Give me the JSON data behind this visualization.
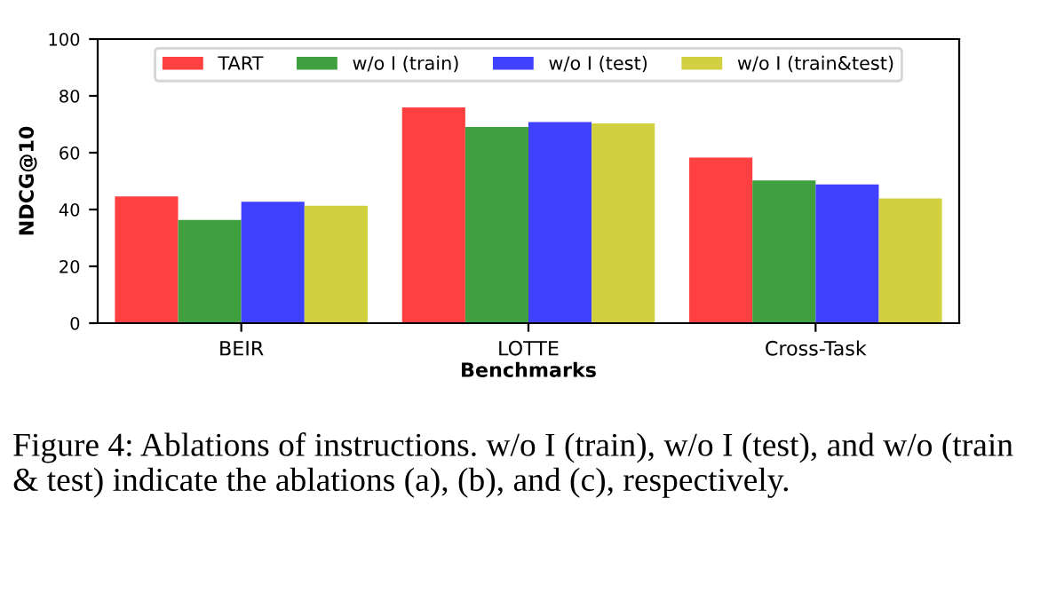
{
  "chart_data": {
    "type": "bar",
    "xlabel": "Benchmarks",
    "ylabel": "NDCG@10",
    "categories": [
      "BEIR",
      "LOTTE",
      "Cross-Task"
    ],
    "series": [
      {
        "name": "TART",
        "color": "#ff4040",
        "values": [
          44.6,
          75.9,
          58.3
        ]
      },
      {
        "name": "w/o I (train)",
        "color": "#40a040",
        "values": [
          36.3,
          69.1,
          50.2
        ]
      },
      {
        "name": "w/o I (test)",
        "color": "#4040ff",
        "values": [
          42.7,
          70.8,
          48.8
        ]
      },
      {
        "name": "w/o I (train&test)",
        "color": "#d0d040",
        "values": [
          41.3,
          70.3,
          43.9
        ]
      }
    ],
    "ylim": [
      0,
      100
    ],
    "yticks": [
      0,
      20,
      40,
      60,
      80,
      100
    ],
    "grid": false,
    "legend": "top",
    "annotations": [
      "Figure 4: Ablations of instructions. w/o I (train), w/o I (test), and w/o (train & test) indicate the ablations (a), (b), and (c), respectively."
    ]
  }
}
